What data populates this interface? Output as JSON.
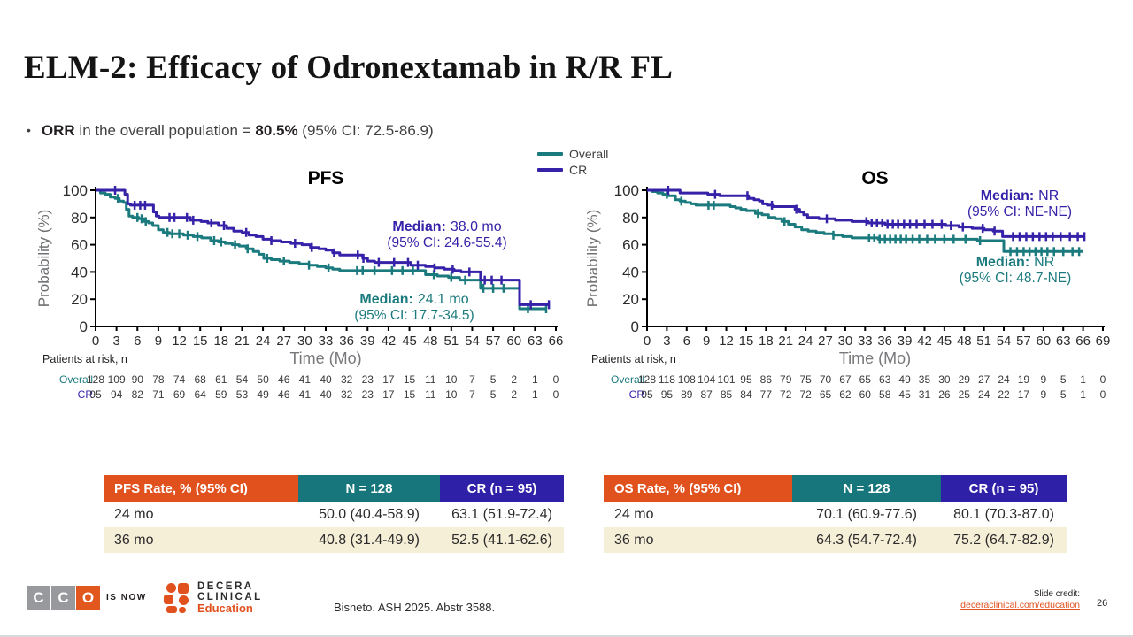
{
  "slide": {
    "title": "ELM-2: Efficacy of Odronextamab in R/R FL",
    "bullet": {
      "marker": "•",
      "bold1": "ORR",
      "text1": " in the overall population = ",
      "bold2": "80.5%",
      "text2": " (95% CI: 72.5-86.9)"
    },
    "page_number": "26"
  },
  "colors": {
    "teal": "#1b7a7e",
    "purple": "#3522a8",
    "orange": "#e1511e",
    "cream": "#f6efd8",
    "header_teal": "#17767b",
    "header_purple": "#2e21a8",
    "cco_gray": "#97999c",
    "cco_orange": "#e2571d",
    "axis_gray": "#6d6f71",
    "time_gray": "#77787b",
    "dark": "#231f20"
  },
  "legend": {
    "items": [
      {
        "label": "Overall",
        "color": "#1b7a7e"
      },
      {
        "label": "CR",
        "color": "#3522a8"
      }
    ]
  },
  "chart_data": [
    {
      "type": "line",
      "title": "PFS",
      "xlabel": "Time (Mo)",
      "ylabel": "Probability (%)",
      "xlim": [
        0,
        66
      ],
      "ylim": [
        0,
        100
      ],
      "x_ticks": [
        0,
        3,
        6,
        9,
        12,
        15,
        18,
        21,
        24,
        27,
        30,
        33,
        36,
        39,
        42,
        45,
        48,
        51,
        54,
        57,
        60,
        63,
        66
      ],
      "y_ticks": [
        0,
        20,
        40,
        60,
        80,
        100
      ],
      "grid": false,
      "series": [
        {
          "name": "Overall",
          "color": "#1b7a7e",
          "median": {
            "label": "Median:",
            "value": "24.1 mo",
            "ci": "(95% CI: 17.7-34.5)"
          },
          "steps": [
            [
              0,
              100
            ],
            [
              0.7,
              98
            ],
            [
              1.4,
              97
            ],
            [
              2.1,
              95
            ],
            [
              2.8,
              94
            ],
            [
              3.4,
              92
            ],
            [
              4,
              91
            ],
            [
              4.4,
              86
            ],
            [
              4.8,
              81
            ],
            [
              5.3,
              80
            ],
            [
              6.2,
              79
            ],
            [
              7,
              77
            ],
            [
              7.6,
              76
            ],
            [
              8.2,
              74
            ],
            [
              9,
              71
            ],
            [
              9.7,
              69
            ],
            [
              10.6,
              68
            ],
            [
              12.6,
              67
            ],
            [
              14,
              66
            ],
            [
              15.2,
              65
            ],
            [
              16.5,
              63
            ],
            [
              17.6,
              62
            ],
            [
              18.6,
              61
            ],
            [
              19.6,
              60
            ],
            [
              20.6,
              59
            ],
            [
              21.6,
              57
            ],
            [
              22.6,
              55
            ],
            [
              23.4,
              53
            ],
            [
              24.1,
              50
            ],
            [
              25.2,
              49
            ],
            [
              26.4,
              48
            ],
            [
              27.8,
              47
            ],
            [
              29.2,
              46
            ],
            [
              30.6,
              45
            ],
            [
              31.8,
              44
            ],
            [
              33,
              43
            ],
            [
              34,
              42
            ],
            [
              35,
              41
            ],
            [
              46.8,
              41
            ],
            [
              47.3,
              38
            ],
            [
              49,
              37
            ],
            [
              50.6,
              36
            ],
            [
              52.2,
              34
            ],
            [
              54.8,
              34
            ],
            [
              55.2,
              28
            ],
            [
              60.3,
              28
            ],
            [
              60.8,
              13
            ],
            [
              64.6,
              13
            ]
          ],
          "censors": [
            3.2,
            6,
            6.6,
            7.2,
            10.3,
            11,
            12,
            13.2,
            14.6,
            17,
            18,
            20,
            21.8,
            24.6,
            27,
            30.6,
            33.4,
            37.5,
            38.3,
            40,
            42.5,
            44,
            45.5,
            48.5,
            51,
            53,
            55.6,
            57,
            58.5,
            62,
            64.6
          ]
        },
        {
          "name": "CR",
          "color": "#3522a8",
          "median": {
            "label": "Median:",
            "value": "38.0 mo",
            "ci": "(95% CI: 24.6-55.4)"
          },
          "steps": [
            [
              0,
              100
            ],
            [
              3.8,
              100
            ],
            [
              4.2,
              97
            ],
            [
              4.6,
              90
            ],
            [
              5,
              89
            ],
            [
              7.9,
              89
            ],
            [
              8.3,
              84
            ],
            [
              8.7,
              81
            ],
            [
              9.1,
              80
            ],
            [
              12.9,
              80
            ],
            [
              13.6,
              78
            ],
            [
              15.1,
              77
            ],
            [
              16.1,
              76
            ],
            [
              17.6,
              74
            ],
            [
              18.8,
              72
            ],
            [
              19.8,
              70
            ],
            [
              21,
              69
            ],
            [
              22,
              67
            ],
            [
              23,
              66
            ],
            [
              24,
              64
            ],
            [
              25.2,
              63
            ],
            [
              26.6,
              62
            ],
            [
              28,
              61
            ],
            [
              29.6,
              60
            ],
            [
              30.8,
              58
            ],
            [
              32,
              57
            ],
            [
              33,
              56
            ],
            [
              34,
              54
            ],
            [
              35,
              52.5
            ],
            [
              38,
              52.5
            ],
            [
              38.3,
              50
            ],
            [
              39,
              48
            ],
            [
              40,
              47
            ],
            [
              44.4,
              47
            ],
            [
              45.2,
              45
            ],
            [
              47.3,
              44
            ],
            [
              48.6,
              43
            ],
            [
              50,
              42
            ],
            [
              51.4,
              41
            ],
            [
              52.4,
              40
            ],
            [
              54.8,
              40
            ],
            [
              55.2,
              34
            ],
            [
              60.3,
              34
            ],
            [
              60.8,
              16
            ],
            [
              65,
              16
            ]
          ],
          "censors": [
            2.8,
            5.6,
            6.4,
            7.1,
            10.6,
            11.3,
            13.1,
            14,
            16.6,
            18.4,
            21.6,
            25.2,
            28.6,
            31,
            34.2,
            37.6,
            38.4,
            40.6,
            42.8,
            44.8,
            46.2,
            48.6,
            51.2,
            53.6,
            55.8,
            56.8,
            58.2,
            62.4,
            65
          ]
        }
      ],
      "risk_label": "Patients at risk, n",
      "risk_rows": [
        {
          "name": "Overall",
          "color": "#1b7a7e",
          "values": [
            128,
            109,
            90,
            78,
            74,
            68,
            61,
            54,
            50,
            46,
            41,
            40,
            32,
            23,
            17,
            15,
            11,
            10,
            7,
            5,
            2,
            1,
            0
          ]
        },
        {
          "name": "CR",
          "color": "#3522a8",
          "values": [
            95,
            94,
            82,
            71,
            69,
            64,
            59,
            53,
            49,
            46,
            41,
            40,
            32,
            23,
            17,
            15,
            11,
            10,
            7,
            5,
            2,
            1,
            0
          ]
        }
      ]
    },
    {
      "type": "line",
      "title": "OS",
      "xlabel": "Time (Mo)",
      "ylabel": "Probability (%)",
      "xlim": [
        0,
        69
      ],
      "ylim": [
        0,
        100
      ],
      "x_ticks": [
        0,
        3,
        6,
        9,
        12,
        15,
        18,
        21,
        24,
        27,
        30,
        33,
        36,
        39,
        42,
        45,
        48,
        51,
        54,
        57,
        60,
        63,
        66,
        69
      ],
      "y_ticks": [
        0,
        20,
        40,
        60,
        80,
        100
      ],
      "grid": false,
      "series": [
        {
          "name": "Overall",
          "color": "#1b7a7e",
          "median": {
            "label": "Median:",
            "value": "NR",
            "ci": "(95% CI: 48.7-NE)"
          },
          "steps": [
            [
              0,
              100
            ],
            [
              0.8,
              99
            ],
            [
              1.6,
              98
            ],
            [
              2.4,
              97
            ],
            [
              3.2,
              96
            ],
            [
              4.3,
              93
            ],
            [
              5,
              92
            ],
            [
              5.8,
              91
            ],
            [
              6.6,
              90
            ],
            [
              7.4,
              89
            ],
            [
              11.9,
              89
            ],
            [
              12.6,
              88
            ],
            [
              13.4,
              87
            ],
            [
              14.2,
              86
            ],
            [
              15,
              85
            ],
            [
              16.4,
              83
            ],
            [
              17.4,
              82
            ],
            [
              18.4,
              80
            ],
            [
              19.4,
              79
            ],
            [
              20.4,
              77
            ],
            [
              21.4,
              75
            ],
            [
              22.4,
              73
            ],
            [
              23.4,
              71
            ],
            [
              24.4,
              70
            ],
            [
              25.6,
              69
            ],
            [
              26.8,
              68
            ],
            [
              28.2,
              67
            ],
            [
              29.6,
              66
            ],
            [
              31,
              65
            ],
            [
              34,
              65
            ],
            [
              35,
              64
            ],
            [
              48.5,
              64
            ],
            [
              50,
              63
            ],
            [
              53.6,
              63
            ],
            [
              54,
              55
            ],
            [
              66,
              55
            ]
          ],
          "censors": [
            3,
            5.2,
            9.3,
            10.1,
            16.8,
            20.8,
            28.2,
            33.6,
            34.4,
            35.2,
            36,
            36.8,
            37.6,
            38.4,
            39.2,
            40.2,
            41.2,
            42.4,
            43.6,
            45,
            46.4,
            48.2,
            50.4,
            55,
            56,
            57,
            57.9,
            58.8,
            59.7,
            60.6,
            61.6,
            63,
            64.4,
            65.4
          ]
        },
        {
          "name": "CR",
          "color": "#3522a8",
          "median": {
            "label": "Median:",
            "value": "NR",
            "ci": "(95% CI: NE-NE)"
          },
          "steps": [
            [
              0,
              100
            ],
            [
              4.6,
              100
            ],
            [
              5,
              98
            ],
            [
              8.8,
              98
            ],
            [
              9.2,
              97
            ],
            [
              11,
              96
            ],
            [
              14.6,
              96
            ],
            [
              15.4,
              94
            ],
            [
              16.2,
              93
            ],
            [
              17,
              92
            ],
            [
              17.5,
              90
            ],
            [
              18.2,
              89
            ],
            [
              19,
              88
            ],
            [
              21.8,
              88
            ],
            [
              22.4,
              86
            ],
            [
              23.1,
              84
            ],
            [
              23.7,
              82
            ],
            [
              24.3,
              80
            ],
            [
              26,
              79
            ],
            [
              28.5,
              78
            ],
            [
              31,
              77
            ],
            [
              33.5,
              76
            ],
            [
              36,
              75
            ],
            [
              44.2,
              75
            ],
            [
              45.2,
              74
            ],
            [
              47.2,
              73
            ],
            [
              49.2,
              72
            ],
            [
              51,
              71
            ],
            [
              52.4,
              70
            ],
            [
              53.8,
              66
            ],
            [
              66.3,
              66
            ]
          ],
          "censors": [
            3.2,
            10.3,
            15.2,
            18.9,
            22.6,
            27.2,
            33.2,
            34,
            34.8,
            35.6,
            36.4,
            37.2,
            38,
            38.9,
            39.8,
            40.8,
            42,
            43.2,
            44.6,
            46,
            47.8,
            50.8,
            52.6,
            55.4,
            56.4,
            57.4,
            58.4,
            59.4,
            60.4,
            61.4,
            62.6,
            64,
            65.2,
            66.2
          ]
        }
      ],
      "risk_label": "Patients at risk, n",
      "risk_rows": [
        {
          "name": "Overall",
          "color": "#1b7a7e",
          "values": [
            128,
            118,
            108,
            104,
            101,
            95,
            86,
            79,
            75,
            70,
            67,
            65,
            63,
            49,
            35,
            30,
            29,
            27,
            24,
            19,
            9,
            5,
            1,
            0
          ]
        },
        {
          "name": "CR",
          "color": "#3522a8",
          "values": [
            95,
            95,
            89,
            87,
            85,
            84,
            77,
            72,
            72,
            65,
            62,
            60,
            58,
            45,
            31,
            26,
            25,
            24,
            22,
            17,
            9,
            5,
            1,
            0
          ]
        }
      ]
    }
  ],
  "rate_tables": [
    {
      "headers": [
        {
          "label": "PFS Rate, % (95% CI)",
          "bg": "#e1511e"
        },
        {
          "label": "N = 128",
          "bg": "#17767b"
        },
        {
          "label": "CR (n = 95)",
          "bg": "#2e21a8"
        }
      ],
      "rows": [
        [
          "24 mo",
          "50.0 (40.4-58.9)",
          "63.1 (51.9-72.4)"
        ],
        [
          "36 mo",
          "40.8 (31.4-49.9)",
          "52.5 (41.1-62.6)"
        ]
      ]
    },
    {
      "headers": [
        {
          "label": "OS Rate, % (95% CI)",
          "bg": "#e1511e"
        },
        {
          "label": "N = 128",
          "bg": "#17767b"
        },
        {
          "label": "CR (n = 95)",
          "bg": "#2e21a8"
        }
      ],
      "rows": [
        [
          "24 mo",
          "70.1 (60.9-77.6)",
          "80.1 (70.3-87.0)"
        ],
        [
          "36 mo",
          "64.3 (54.7-72.4)",
          "75.2 (64.7-82.9)"
        ]
      ]
    }
  ],
  "footer": {
    "cco_letters": [
      "C",
      "C",
      "O"
    ],
    "is_now": "IS NOW",
    "decera_line1": "DECERA",
    "decera_line2": "CLINICAL",
    "decera_line3": "Education",
    "citation": "Bisneto. ASH 2025. Abstr 3588.",
    "credit_label": "Slide credit:",
    "credit_link": "deceraclinical.com/education"
  }
}
